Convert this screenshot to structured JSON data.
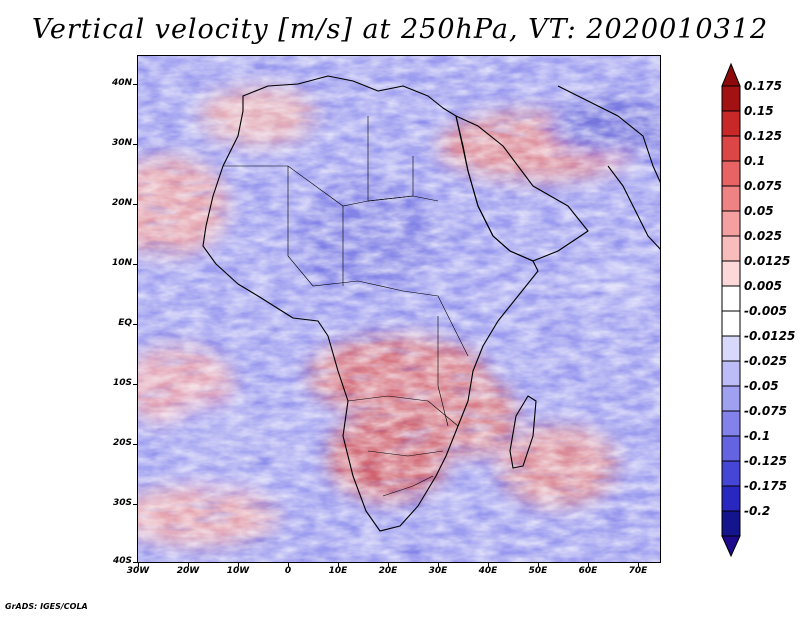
{
  "title": "Vertical velocity [m/s] at 250hPa, VT: 2020010312",
  "lat_labels": [
    "40N",
    "30N",
    "20N",
    "10N",
    "EQ",
    "10S",
    "20S",
    "30S",
    "40S"
  ],
  "lon_labels": [
    "30W",
    "20W",
    "10W",
    "0",
    "10E",
    "20E",
    "30E",
    "40E",
    "50E",
    "60E",
    "70E"
  ],
  "colorbar": {
    "labels": [
      "0.175",
      "0.15",
      "0.125",
      "0.1",
      "0.075",
      "0.05",
      "0.025",
      "0.0125",
      "0.005",
      "-0.005",
      "-0.0125",
      "-0.025",
      "-0.05",
      "-0.075",
      "-0.1",
      "-0.125",
      "-0.175",
      "-0.2"
    ],
    "colors": [
      "#a31212",
      "#c82828",
      "#dc4646",
      "#e86464",
      "#ef8282",
      "#f4a0a0",
      "#f8bcbc",
      "#fcd8d8",
      "#ffffff",
      "#ffffff",
      "#d8d8fa",
      "#bcbcf6",
      "#a0a0f0",
      "#8282ea",
      "#6464e2",
      "#4646d6",
      "#2828c0",
      "#14148c"
    ],
    "top_arrow_color": "#8c0a0a",
    "bottom_arrow_color": "#1e0a8c"
  },
  "credit": "GrADS: IGES/COLA"
}
